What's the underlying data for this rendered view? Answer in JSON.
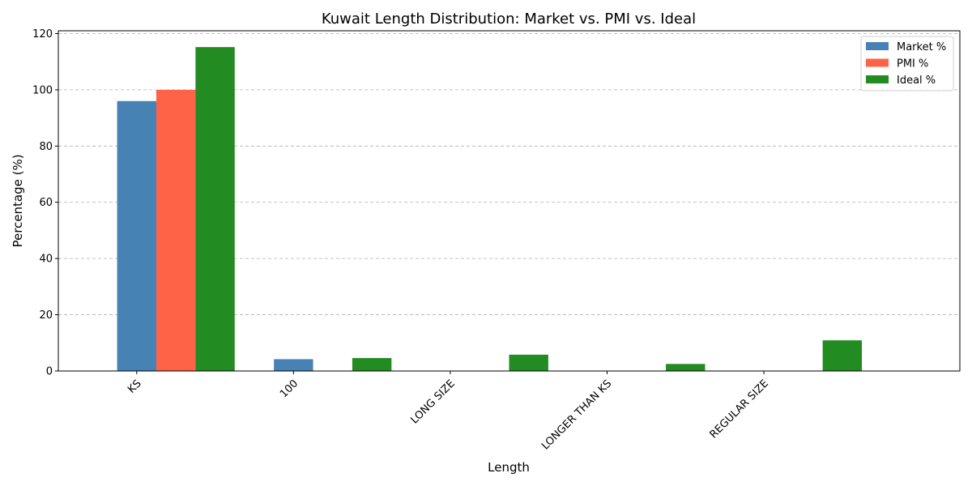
{
  "chart_data": {
    "type": "bar",
    "title": "Kuwait Length Distribution: Market vs. PMI vs. Ideal",
    "xlabel": "Length",
    "ylabel": "Percentage (%)",
    "categories": [
      "KS",
      "100",
      "LONG SIZE",
      "LONGER THAN KS",
      "REGULAR SIZE"
    ],
    "series": [
      {
        "name": "Market %",
        "color": "#4682b4",
        "values": [
          96.0,
          4.2,
          0,
          0,
          0
        ]
      },
      {
        "name": "PMI %",
        "color": "#ff6347",
        "values": [
          100.0,
          0,
          0,
          0,
          0
        ]
      },
      {
        "name": "Ideal %",
        "color": "#228b22",
        "values": [
          115.2,
          4.6,
          5.8,
          2.5,
          10.9
        ]
      }
    ],
    "ylim": [
      0,
      121
    ],
    "yticks": [
      0,
      20,
      40,
      60,
      80,
      100,
      120
    ],
    "grid": "y-dashed",
    "legend_position": "top-right",
    "xtick_rotation": -45
  }
}
